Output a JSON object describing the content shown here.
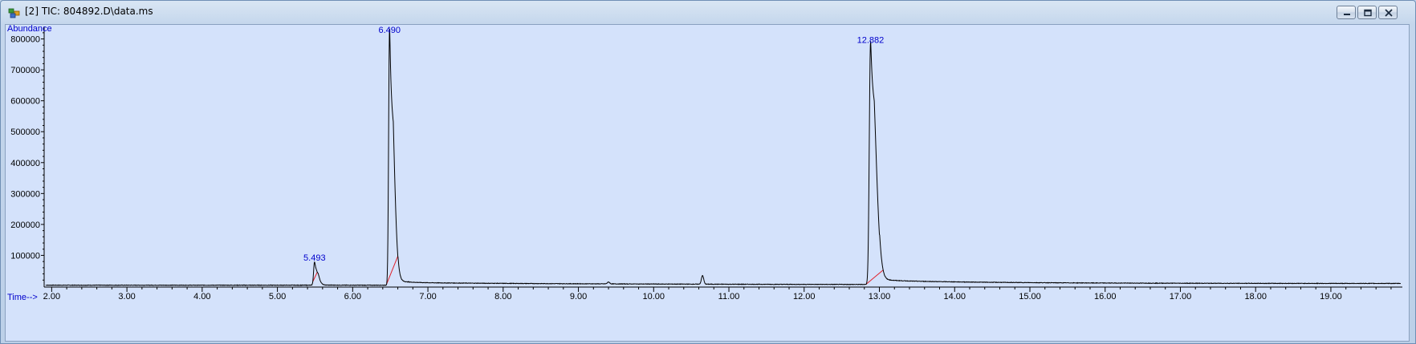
{
  "window": {
    "title": "[2] TIC: 804892.D\\data.ms",
    "app_icon": "chromatogram-app-icon",
    "controls": [
      "minimize",
      "restore",
      "close"
    ]
  },
  "chart_data": {
    "type": "line",
    "title": "",
    "xlabel": "Time-->",
    "ylabel": "Abundance",
    "xlim": [
      1.9,
      19.95
    ],
    "ylim": [
      0,
      830000
    ],
    "x_ticks": [
      "2.00",
      "3.00",
      "4.00",
      "5.00",
      "6.00",
      "7.00",
      "8.00",
      "9.00",
      "10.00",
      "11.00",
      "12.00",
      "13.00",
      "14.00",
      "15.00",
      "16.00",
      "17.00",
      "18.00",
      "19.00"
    ],
    "y_ticks": [
      "100000",
      "200000",
      "300000",
      "400000",
      "500000",
      "600000",
      "700000",
      "800000"
    ],
    "grid": false,
    "line_color": "#000000",
    "baseline_color": "#e0202a",
    "label_color": "#0000cc",
    "baseline_level": 3500,
    "peaks": [
      {
        "rt": 5.493,
        "label": "5.493",
        "height": 75000,
        "width": 0.012,
        "tail": 0.03
      },
      {
        "rt": 6.49,
        "label": "6.490",
        "height": 825000,
        "width": 0.012,
        "tail": 0.04
      },
      {
        "rt": 12.882,
        "label": "12.882",
        "height": 780000,
        "width": 0.016,
        "tail": 0.05
      }
    ],
    "minor_peaks": [
      {
        "rt": 9.4,
        "height": 6000
      },
      {
        "rt": 10.65,
        "height": 28000
      }
    ],
    "baseline_segments": [
      {
        "start": 5.47,
        "end": 5.53
      },
      {
        "start": 6.45,
        "end": 6.6
      },
      {
        "start": 12.82,
        "end": 13.05
      }
    ]
  }
}
